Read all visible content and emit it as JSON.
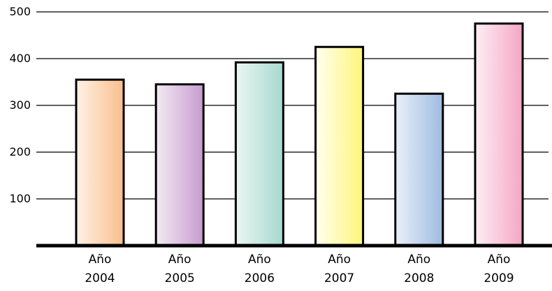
{
  "chart_data": {
    "type": "bar",
    "categories": [
      "Año 2004",
      "Año 2005",
      "Año 2006",
      "Año 2007",
      "Año 2008",
      "Año 2009"
    ],
    "category_lines": [
      [
        "Año",
        "2004"
      ],
      [
        "Año",
        "2005"
      ],
      [
        "Año",
        "2006"
      ],
      [
        "Año",
        "2007"
      ],
      [
        "Año",
        "2008"
      ],
      [
        "Año",
        "2009"
      ]
    ],
    "values": [
      355,
      345,
      392,
      425,
      325,
      475
    ],
    "ylim": [
      0,
      500
    ],
    "yticks": [
      100,
      200,
      300,
      400,
      500
    ],
    "ytick_labels": [
      "100",
      "200",
      "300",
      "400",
      "500"
    ],
    "grid": true,
    "legend": "none",
    "title": "",
    "xlabel": "",
    "ylabel": "",
    "colors": [
      [
        "#fff2e6",
        "#f9be8c"
      ],
      [
        "#f3eaf3",
        "#c79ccf"
      ],
      [
        "#ebf6f3",
        "#a5d9cf"
      ],
      [
        "#fffff0",
        "#fff57a"
      ],
      [
        "#eaf0fa",
        "#9fbbe2"
      ],
      [
        "#fdeff4",
        "#f5a6c5"
      ]
    ]
  }
}
